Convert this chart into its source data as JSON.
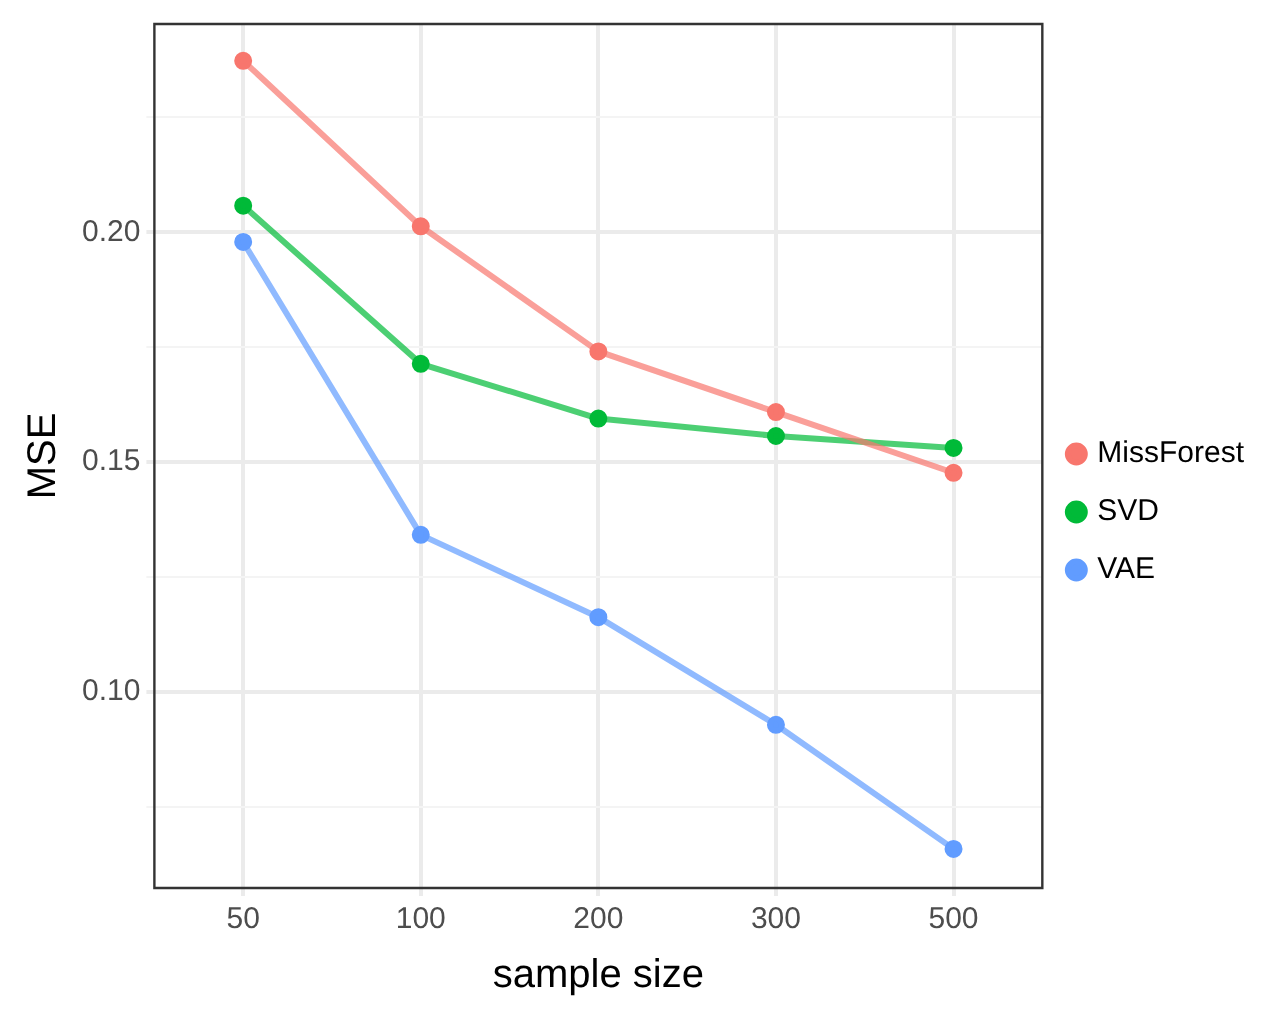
{
  "chart_data": {
    "type": "line",
    "xlabel": "sample size",
    "ylabel": "MSE",
    "categories": [
      "50",
      "100",
      "200",
      "300",
      "500"
    ],
    "series": [
      {
        "name": "MissForest",
        "color": "#f8766d",
        "values": [
          0.2373,
          0.2013,
          0.1741,
          0.1609,
          0.1477
        ]
      },
      {
        "name": "SVD",
        "color": "#00ba38",
        "values": [
          0.2058,
          0.1714,
          0.1595,
          0.1557,
          0.1531
        ]
      },
      {
        "name": "VAE",
        "color": "#619cff",
        "values": [
          0.1979,
          0.1342,
          0.1163,
          0.0929,
          0.0659
        ]
      }
    ],
    "ylim": [
      0.0574,
      0.2453
    ],
    "yticks": [
      {
        "value": 0.075,
        "label": null
      },
      {
        "value": 0.1,
        "label": "0.10"
      },
      {
        "value": 0.125,
        "label": null
      },
      {
        "value": 0.15,
        "label": "0.15"
      },
      {
        "value": 0.175,
        "label": null
      },
      {
        "value": 0.2,
        "label": "0.20"
      },
      {
        "value": 0.225,
        "label": null
      }
    ],
    "grid": true,
    "legend": "right",
    "marker": "circle",
    "line_style": "solid"
  }
}
